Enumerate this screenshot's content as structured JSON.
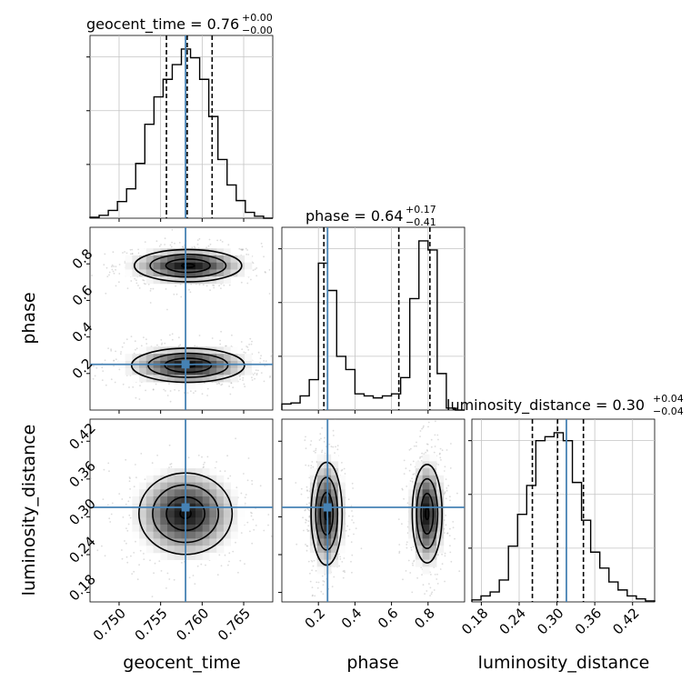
{
  "chart_data": {
    "type": "corner",
    "parameters": [
      "geocent_time",
      "phase",
      "luminosity_distance"
    ],
    "truths": {
      "geocent_time": 0.758,
      "phase": 0.25,
      "luminosity_distance": 0.315
    },
    "titles": [
      {
        "param": "geocent_time",
        "median": "0.76",
        "plus": "+0.00",
        "minus": "−0.00"
      },
      {
        "param": "phase",
        "median": "0.64",
        "plus": "+0.17",
        "minus": "−0.41"
      },
      {
        "param": "luminosity_distance",
        "median": "0.30",
        "plus": "+0.04",
        "minus": "−0.04"
      }
    ],
    "axes": {
      "geocent_time": {
        "range": [
          0.7465,
          0.7685
        ],
        "ticks": [
          0.75,
          0.755,
          0.76,
          0.765
        ],
        "tick_labels": [
          "0.750",
          "0.755",
          "0.760",
          "0.765"
        ]
      },
      "phase": {
        "range": [
          0.0,
          1.0
        ],
        "ticks": [
          0.2,
          0.4,
          0.6,
          0.8
        ],
        "tick_labels": [
          "0.2",
          "0.4",
          "0.6",
          "0.8"
        ]
      },
      "luminosity_distance": {
        "range": [
          0.165,
          0.455
        ],
        "ticks": [
          0.18,
          0.24,
          0.3,
          0.36,
          0.42
        ],
        "tick_labels": [
          "0.18",
          "0.24",
          "0.30",
          "0.36",
          "0.42"
        ]
      }
    },
    "histograms": {
      "geocent_time": {
        "bins": [
          0.7465,
          0.7476,
          0.7487,
          0.7498,
          0.7509,
          0.752,
          0.7531,
          0.7542,
          0.7553,
          0.7564,
          0.7575,
          0.7586,
          0.7597,
          0.7608,
          0.7619,
          0.763,
          0.7641,
          0.7652,
          0.7663,
          0.7674,
          0.7685
        ],
        "counts": [
          1,
          3,
          8,
          17,
          30,
          56,
          96,
          124,
          142,
          157,
          173,
          164,
          142,
          104,
          60,
          34,
          18,
          6,
          2,
          0
        ],
        "quantiles": [
          0.7557,
          0.7582,
          0.7612
        ]
      },
      "phase": {
        "bins": [
          0.0,
          0.05,
          0.1,
          0.15,
          0.2,
          0.25,
          0.3,
          0.35,
          0.4,
          0.45,
          0.5,
          0.55,
          0.6,
          0.65,
          0.7,
          0.75,
          0.8,
          0.85,
          0.9,
          0.95,
          1.0
        ],
        "counts": [
          6,
          7,
          14,
          30,
          145,
          118,
          53,
          40,
          16,
          14,
          12,
          14,
          16,
          32,
          110,
          167,
          158,
          36,
          2,
          0
        ],
        "quantiles": [
          0.23,
          0.64,
          0.81
        ]
      },
      "luminosity_distance": {
        "bins": [
          0.165,
          0.1795,
          0.194,
          0.2085,
          0.223,
          0.2375,
          0.252,
          0.2665,
          0.281,
          0.2955,
          0.31,
          0.3245,
          0.339,
          0.3535,
          0.368,
          0.3825,
          0.397,
          0.4115,
          0.426,
          0.4405,
          0.455
        ],
        "counts": [
          2,
          6,
          10,
          22,
          56,
          88,
          117,
          162,
          166,
          170,
          162,
          120,
          82,
          50,
          34,
          20,
          12,
          6,
          3,
          1
        ],
        "quantiles": [
          0.261,
          0.301,
          0.342
        ]
      }
    },
    "contour_levels": [
      0.5,
      1.0,
      1.5,
      2.0
    ],
    "contour_modes": {
      "phase_vs_geocent_time": [
        {
          "x": 0.7583,
          "y": 0.79,
          "sx": 0.0038,
          "sy": 0.052
        },
        {
          "x": 0.7583,
          "y": 0.245,
          "sx": 0.004,
          "sy": 0.055
        }
      ],
      "luminosity_distance_vs_geocent_time": [
        {
          "x": 0.758,
          "y": 0.305,
          "sx": 0.0033,
          "sy": 0.038
        }
      ],
      "luminosity_distance_vs_phase": [
        {
          "x": 0.245,
          "y": 0.305,
          "sx": 0.05,
          "sy": 0.048
        },
        {
          "x": 0.795,
          "y": 0.305,
          "sx": 0.048,
          "sy": 0.046
        }
      ]
    },
    "grid": true,
    "truth_color": "#4682b4",
    "line_color": "#000000"
  }
}
